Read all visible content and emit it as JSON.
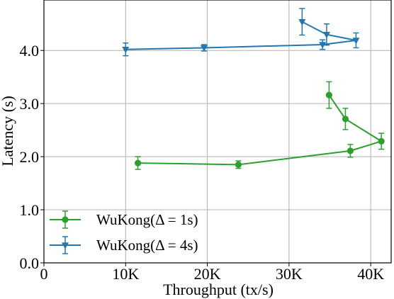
{
  "chart_data": {
    "type": "line",
    "xlabel": "Throughput (tx/s)",
    "ylabel": "Latency (s)",
    "xlim": [
      0,
      42500
    ],
    "ylim": [
      0,
      4.95
    ],
    "grid": true,
    "legend_position": "bottom-left",
    "x_ticks": [
      {
        "value": 0,
        "label": "0"
      },
      {
        "value": 10000,
        "label": "10K"
      },
      {
        "value": 20000,
        "label": "20K"
      },
      {
        "value": 30000,
        "label": "30K"
      },
      {
        "value": 40000,
        "label": "40K"
      }
    ],
    "y_ticks": [
      {
        "value": 0,
        "label": "0.0"
      },
      {
        "value": 1,
        "label": "1.0"
      },
      {
        "value": 2,
        "label": "2.0"
      },
      {
        "value": 3,
        "label": "3.0"
      },
      {
        "value": 4,
        "label": "4.0"
      }
    ],
    "series": [
      {
        "name": "WuKong(Δ = 1s)",
        "color": "#2ca02c",
        "marker": "circle",
        "points": [
          {
            "x": 11500,
            "y": 1.88,
            "err": 0.12
          },
          {
            "x": 23800,
            "y": 1.85,
            "err": 0.07
          },
          {
            "x": 37500,
            "y": 2.11,
            "err": 0.12
          },
          {
            "x": 41300,
            "y": 2.29,
            "err": 0.15
          },
          {
            "x": 36900,
            "y": 2.71,
            "err": 0.2
          },
          {
            "x": 34900,
            "y": 3.16,
            "err": 0.25
          }
        ]
      },
      {
        "name": "WuKong(Δ = 4s)",
        "color": "#1f77b4",
        "marker": "triangle-down",
        "points": [
          {
            "x": 10000,
            "y": 4.02,
            "err": 0.12
          },
          {
            "x": 19600,
            "y": 4.05,
            "err": 0.06
          },
          {
            "x": 34100,
            "y": 4.11,
            "err": 0.09
          },
          {
            "x": 38200,
            "y": 4.19,
            "err": 0.14
          },
          {
            "x": 34600,
            "y": 4.3,
            "err": 0.2
          },
          {
            "x": 31600,
            "y": 4.54,
            "err": 0.25
          }
        ]
      }
    ]
  }
}
